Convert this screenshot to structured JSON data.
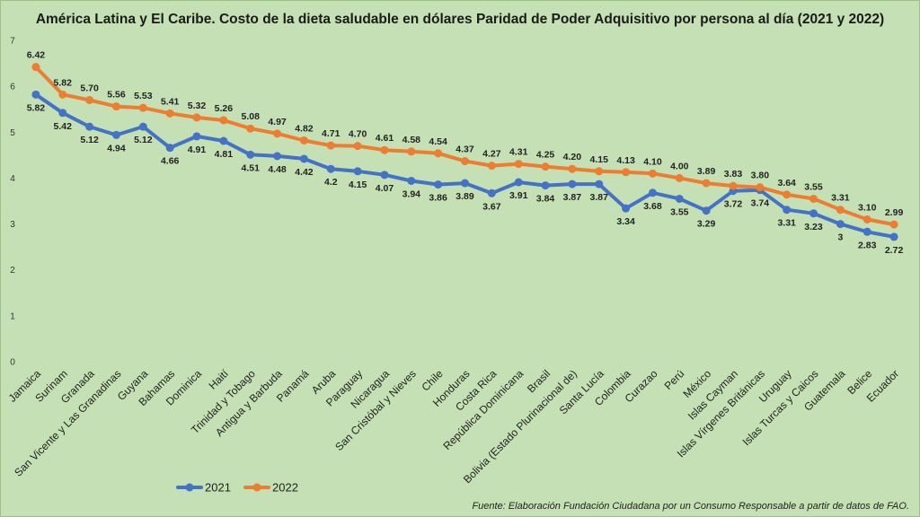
{
  "chart_data": {
    "type": "line",
    "title": "América Latina y El Caribe. Costo de la dieta saludable en dólares Paridad de Poder Adquisitivo por persona al día (2021 y 2022)",
    "source": "Fuente: Elaboración Fundación Ciudadana por un Consumo Responsable a partir de datos de FAO.",
    "xlabel": "",
    "ylabel": "",
    "ylim": [
      0,
      7
    ],
    "yticks": [
      0,
      1,
      2,
      3,
      4,
      5,
      6,
      7
    ],
    "grid": false,
    "legend_position": "bottom-left",
    "categories": [
      "Jamaica",
      "Surinam",
      "Granada",
      "San Vicente y Las Granadinas",
      "Guyana",
      "Bahamas",
      "Dominica",
      "Haití",
      "Trinidad y Tobago",
      "Antigua y Barbuda",
      "Panamá",
      "Aruba",
      "Paraguay",
      "Nicaragua",
      "San Cristóbal y Nieves",
      "Chile",
      "Honduras",
      "Costa Rica",
      "República Dominicana",
      "Brasil",
      "Bolivia (Estado Plurinacional de)",
      "Santa Lucía",
      "Colombia",
      "Curazao",
      "Perú",
      "México",
      "Islas Cayman",
      "Islas Vírgenes Británicas",
      "Uruguay",
      "Islas Turcas y Caicos",
      "Guatemala",
      "Belice",
      "Ecuador"
    ],
    "series": [
      {
        "name": "2021",
        "color": "#4472c4",
        "values": [
          5.82,
          5.42,
          5.12,
          4.94,
          5.12,
          4.66,
          4.91,
          4.81,
          4.51,
          4.48,
          4.42,
          4.2,
          4.15,
          4.07,
          3.94,
          3.86,
          3.89,
          3.67,
          3.91,
          3.84,
          3.87,
          3.87,
          3.34,
          3.68,
          3.55,
          3.29,
          3.72,
          3.74,
          3.31,
          3.23,
          3,
          2.83,
          2.72
        ],
        "labels": [
          "5.82",
          "5.42",
          "5.12",
          "4.94",
          "5.12",
          "4.66",
          "4.91",
          "4.81",
          "4.51",
          "4.48",
          "4.42",
          "4.2",
          "4.15",
          "4.07",
          "3.94",
          "3.86",
          "3.89",
          "3.67",
          "3.91",
          "3.84",
          "3.87",
          "3.87",
          "3.34",
          "3.68",
          "3.55",
          "3.29",
          "3.72",
          "3.74",
          "3.31",
          "3.23",
          "3",
          "2.83",
          "2.72"
        ]
      },
      {
        "name": "2022",
        "color": "#ed7d31",
        "values": [
          6.42,
          5.82,
          5.7,
          5.56,
          5.53,
          5.41,
          5.32,
          5.26,
          5.08,
          4.97,
          4.82,
          4.71,
          4.7,
          4.61,
          4.58,
          4.54,
          4.37,
          4.27,
          4.31,
          4.25,
          4.2,
          4.15,
          4.13,
          4.1,
          4.0,
          3.89,
          3.83,
          3.8,
          3.64,
          3.55,
          3.31,
          3.1,
          2.99
        ],
        "labels": [
          "6.42",
          "5.82",
          "5.70",
          "5.56",
          "5.53",
          "5.41",
          "5.32",
          "5.26",
          "5.08",
          "4.97",
          "4.82",
          "4.71",
          "4.70",
          "4.61",
          "4.58",
          "4.54",
          "4.37",
          "4.27",
          "4.31",
          "4.25",
          "4.20",
          "4.15",
          "4.13",
          "4.10",
          "4.00",
          "3.89",
          "3.83",
          "3.80",
          "3.64",
          "3.55",
          "3.31",
          "3.10",
          "2.99"
        ]
      }
    ]
  }
}
